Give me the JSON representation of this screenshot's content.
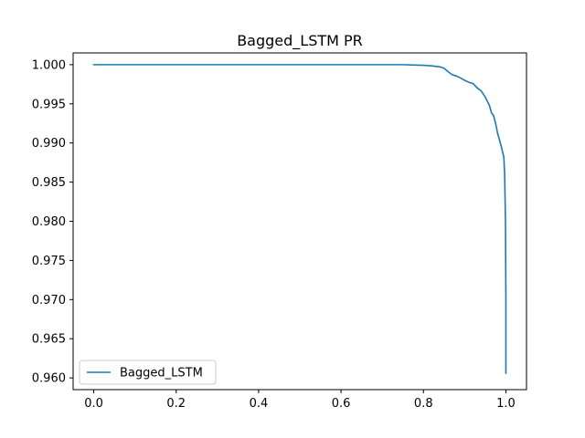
{
  "chart_data": {
    "type": "line",
    "title": "Bagged_LSTM PR",
    "xlabel": "",
    "ylabel": "",
    "xlim": [
      -0.05,
      1.05
    ],
    "ylim": [
      0.9585,
      1.0015
    ],
    "x_ticks": [
      0.0,
      0.2,
      0.4,
      0.6,
      0.8,
      1.0
    ],
    "x_tick_labels": [
      "0.0",
      "0.2",
      "0.4",
      "0.6",
      "0.8",
      "1.0"
    ],
    "y_ticks": [
      0.96,
      0.965,
      0.97,
      0.975,
      0.98,
      0.985,
      0.99,
      0.995,
      1.0
    ],
    "y_tick_labels": [
      "0.960",
      "0.965",
      "0.970",
      "0.975",
      "0.980",
      "0.985",
      "0.990",
      "0.995",
      "1.000"
    ],
    "grid": false,
    "legend_position": "lower-left",
    "series": [
      {
        "name": "Bagged_LSTM",
        "color": "#1f77b4",
        "x": [
          0.0,
          0.1,
          0.2,
          0.3,
          0.4,
          0.5,
          0.6,
          0.7,
          0.75,
          0.78,
          0.8,
          0.82,
          0.84,
          0.85,
          0.86,
          0.87,
          0.88,
          0.89,
          0.9,
          0.91,
          0.92,
          0.93,
          0.94,
          0.95,
          0.96,
          0.965,
          0.97,
          0.975,
          0.98,
          0.985,
          0.99,
          0.995,
          0.997,
          0.998,
          0.999,
          1.0,
          1.0
        ],
        "y": [
          1.0,
          1.0,
          1.0,
          1.0,
          1.0,
          1.0,
          1.0,
          1.0,
          1.0,
          0.99995,
          0.99992,
          0.99985,
          0.99972,
          0.99955,
          0.9991,
          0.9987,
          0.99855,
          0.9983,
          0.998,
          0.99775,
          0.9976,
          0.99705,
          0.99665,
          0.99585,
          0.9948,
          0.99385,
          0.9935,
          0.9925,
          0.9912,
          0.9903,
          0.9893,
          0.9882,
          0.986,
          0.983,
          0.98,
          0.97,
          0.9606
        ]
      }
    ]
  }
}
